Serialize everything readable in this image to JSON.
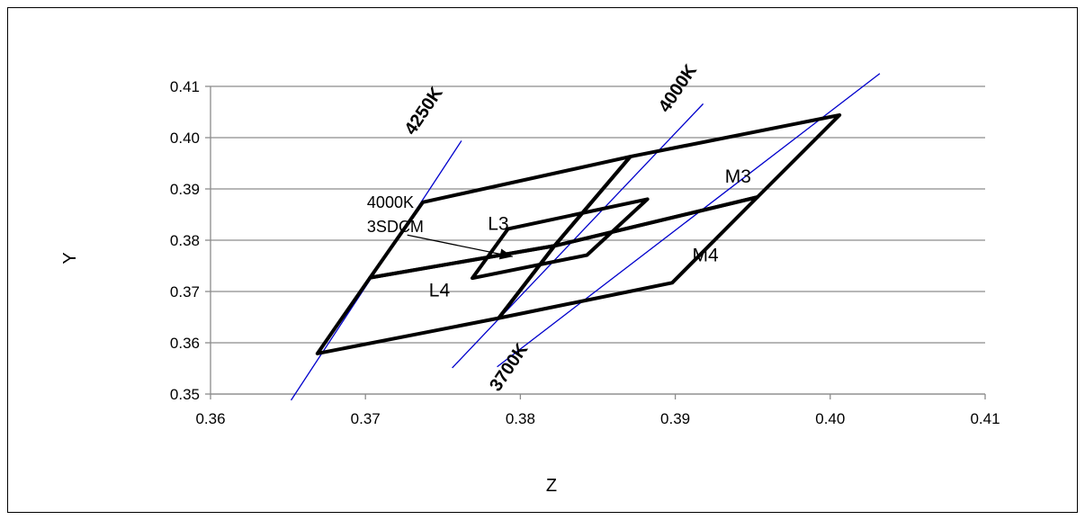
{
  "chart_data": {
    "type": "scatter",
    "title": "",
    "xlabel": "Z",
    "ylabel": "Y",
    "xlim": [
      0.36,
      0.41
    ],
    "ylim": [
      0.35,
      0.41
    ],
    "x_ticks": [
      "0.36",
      "0.37",
      "0.38",
      "0.39",
      "0.40",
      "0.41"
    ],
    "y_ticks": [
      "0.35",
      "0.36",
      "0.37",
      "0.38",
      "0.39",
      "0.40",
      "0.41"
    ],
    "grid": "horizontal",
    "isotherm_color": "#0000cc",
    "isotherms": [
      {
        "label": "4250K",
        "from": [
          0.3652,
          0.3488
        ],
        "to": [
          0.3762,
          0.3994
        ]
      },
      {
        "label": "4000K",
        "from": [
          0.3756,
          0.3551
        ],
        "to": [
          0.3918,
          0.4066
        ]
      },
      {
        "label": "3700K",
        "from": [
          0.3785,
          0.3553
        ],
        "to": [
          0.4032,
          0.4125
        ]
      }
    ],
    "bins": [
      {
        "label": "L4",
        "points": [
          [
            0.3669,
            0.3579
          ],
          [
            0.3786,
            0.3648
          ],
          [
            0.3822,
            0.3789
          ],
          [
            0.3703,
            0.3727
          ]
        ]
      },
      {
        "label": "L3",
        "points": [
          [
            0.3703,
            0.3727
          ],
          [
            0.3822,
            0.3789
          ],
          [
            0.3871,
            0.3963
          ],
          [
            0.3737,
            0.3874
          ]
        ]
      },
      {
        "label": "M4",
        "points": [
          [
            0.3786,
            0.3648
          ],
          [
            0.3898,
            0.3717
          ],
          [
            0.3953,
            0.3884
          ],
          [
            0.3822,
            0.3789
          ]
        ]
      },
      {
        "label": "M3",
        "points": [
          [
            0.3822,
            0.3789
          ],
          [
            0.3953,
            0.3884
          ],
          [
            0.4006,
            0.4044
          ],
          [
            0.3871,
            0.3963
          ]
        ]
      }
    ],
    "ellipse": {
      "label_line1": "4000K",
      "label_line2": "3SDCM",
      "points": [
        [
          0.3769,
          0.3726
        ],
        [
          0.3843,
          0.3771
        ],
        [
          0.3882,
          0.388
        ],
        [
          0.3792,
          0.3822
        ]
      ]
    },
    "annotations": [
      {
        "text": "L3",
        "x": 0.3779,
        "y": 0.382
      },
      {
        "text": "L4",
        "x": 0.3741,
        "y": 0.369
      },
      {
        "text": "M4",
        "x": 0.3911,
        "y": 0.3759
      },
      {
        "text": "M3",
        "x": 0.3932,
        "y": 0.3912
      }
    ]
  }
}
